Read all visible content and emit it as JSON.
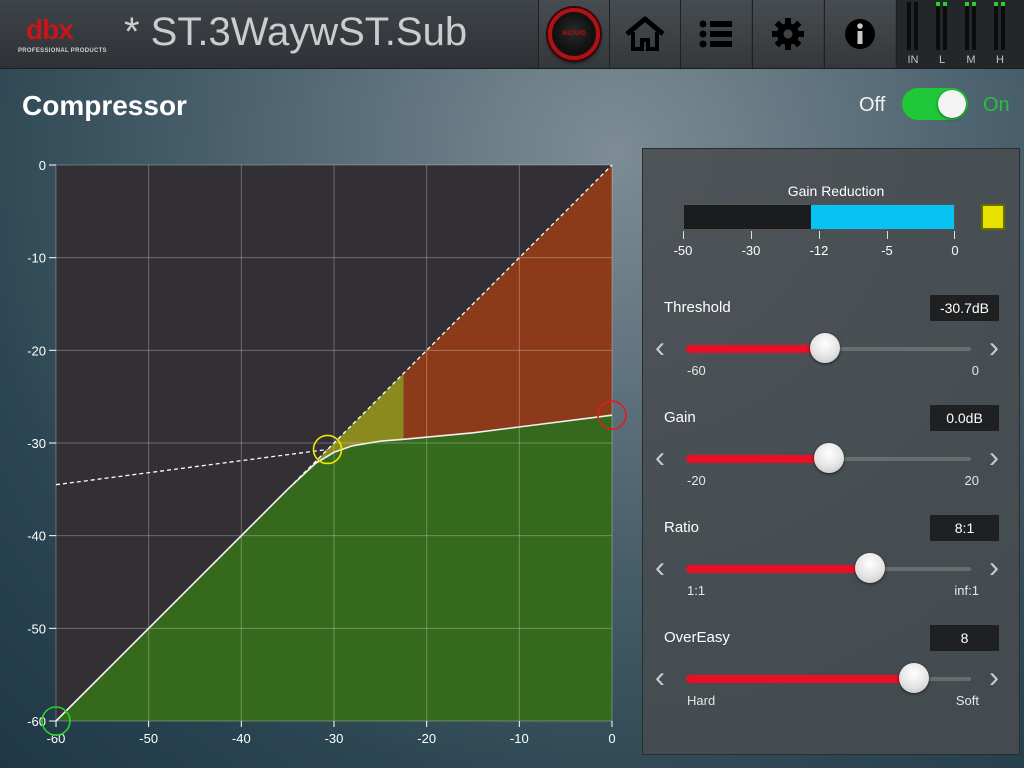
{
  "app": {
    "brand": "dbx",
    "brand_sub": "PROFESSIONAL PRODUCTS",
    "preset_title": "* ST.3WaywST.Sub",
    "wizard_label": "WIZARD"
  },
  "toolbar": {
    "buttons": [
      {
        "name": "wizard-button",
        "icon": "wizard-knob-icon"
      },
      {
        "name": "home-button",
        "icon": "home-icon"
      },
      {
        "name": "menu-button",
        "icon": "list-icon"
      },
      {
        "name": "settings-button",
        "icon": "gear-icon"
      },
      {
        "name": "info-button",
        "icon": "info-icon"
      }
    ],
    "meters": [
      {
        "label": "IN",
        "level": 0.0
      },
      {
        "label": "L",
        "level": 1.0
      },
      {
        "label": "M",
        "level": 1.0
      },
      {
        "label": "H",
        "level": 1.0
      }
    ],
    "meter_color": "#2bd12b"
  },
  "page": {
    "title": "Compressor",
    "toggle_off_label": "Off",
    "toggle_on_label": "On",
    "enabled": true,
    "toggle_color": "#1ec837"
  },
  "chart_data": {
    "type": "line",
    "x_ticks": [
      "-60",
      "-50",
      "-40",
      "-30",
      "-20",
      "-10",
      "0"
    ],
    "y_ticks": [
      "0",
      "-10",
      "-20",
      "-30",
      "-40",
      "-50",
      "-60"
    ],
    "xlim": [
      -60,
      0
    ],
    "ylim": [
      -60,
      0
    ],
    "grid": true,
    "threshold_db": -30.7,
    "ratio": 8,
    "reference_line": {
      "x": [
        -60,
        0
      ],
      "y": [
        -60,
        0
      ]
    },
    "transfer_curve": {
      "x": [
        -60,
        -40,
        -35,
        -32,
        -30,
        -28,
        -25,
        -22.5,
        -15,
        0
      ],
      "y": [
        -60,
        -40,
        -35,
        -32.2,
        -31,
        -30.3,
        -29.8,
        -29.6,
        -28.9,
        -27
      ]
    },
    "extension_line": {
      "x": [
        -60,
        -30.7
      ],
      "y": [
        -34.5,
        -30.7
      ]
    },
    "markers": [
      {
        "name": "low-handle",
        "x": -60,
        "y": -60,
        "color": "#2ad12a"
      },
      {
        "name": "threshold-handle",
        "x": -30.7,
        "y": -30.7,
        "color": "#f2e600"
      },
      {
        "name": "gain-handle",
        "x": 0,
        "y": -27,
        "color": "#e11c1c"
      }
    ],
    "colors": {
      "plot_bg": "#333035",
      "below_curve": "#356a1c",
      "reduction": "#8d3a1b",
      "knee": "#8b8a1e",
      "curve": "#f0f0f0"
    }
  },
  "gain_reduction": {
    "title": "Gain Reduction",
    "tick_labels": [
      "-50",
      "-30",
      "-12",
      "-5",
      "0"
    ],
    "value_db": -12,
    "fill_fraction": 0.53,
    "meter_color": "#06c3f4",
    "peak_color": "#e5e200"
  },
  "params": [
    {
      "key": "threshold",
      "label": "Threshold",
      "value": "-30.7dB",
      "min_label": "-60",
      "max_label": "0",
      "fraction": 0.488
    },
    {
      "key": "gain",
      "label": "Gain",
      "value": "0.0dB",
      "min_label": "-20",
      "max_label": "20",
      "fraction": 0.5
    },
    {
      "key": "ratio",
      "label": "Ratio",
      "value": "8:1",
      "min_label": "1:1",
      "max_label": "inf:1",
      "fraction": 0.645
    },
    {
      "key": "overeasy",
      "label": "OverEasy",
      "value": "8",
      "min_label": "Hard",
      "max_label": "Soft",
      "fraction": 0.8
    }
  ],
  "slider_fill_color": "#ea0e26"
}
